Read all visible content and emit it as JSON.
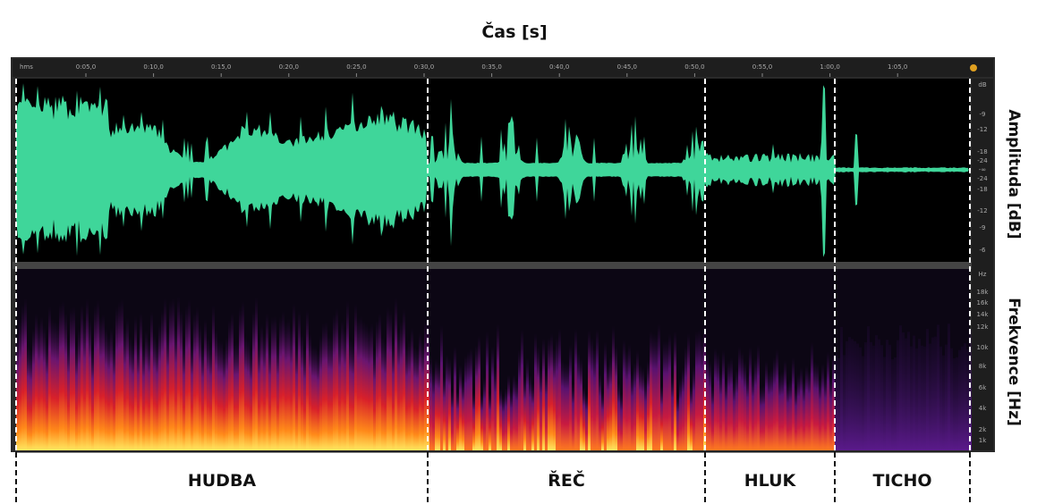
{
  "title": "Čas [s]",
  "ruler": {
    "labels": [
      "hms",
      "0:05,0",
      "0:10,0",
      "0:15,0",
      "0:20,0",
      "0:25,0",
      "0:30,0",
      "0:35,0",
      "0:40,0",
      "0:45,0",
      "0:50,0",
      "0:55,0",
      "1:00,0",
      "1:05,0"
    ]
  },
  "amplitude_scale": {
    "labels": [
      "dB",
      "-9",
      "-12",
      "-18",
      "-24",
      "-∞",
      "-24",
      "-18",
      "-12",
      "-9",
      "-6"
    ]
  },
  "frequency_scale": {
    "labels": [
      "Hz",
      "18k",
      "16k",
      "14k",
      "12k",
      "10k",
      "8k",
      "6k",
      "4k",
      "2k",
      "1k"
    ]
  },
  "axis_labels": {
    "amplitude": "Amplituda [dB]",
    "frequency": "Frekvence [Hz]"
  },
  "segments": [
    {
      "label": "HUDBA"
    },
    {
      "label": "ŘEČ"
    },
    {
      "label": "HLUK"
    },
    {
      "label": "TICHO"
    }
  ]
}
